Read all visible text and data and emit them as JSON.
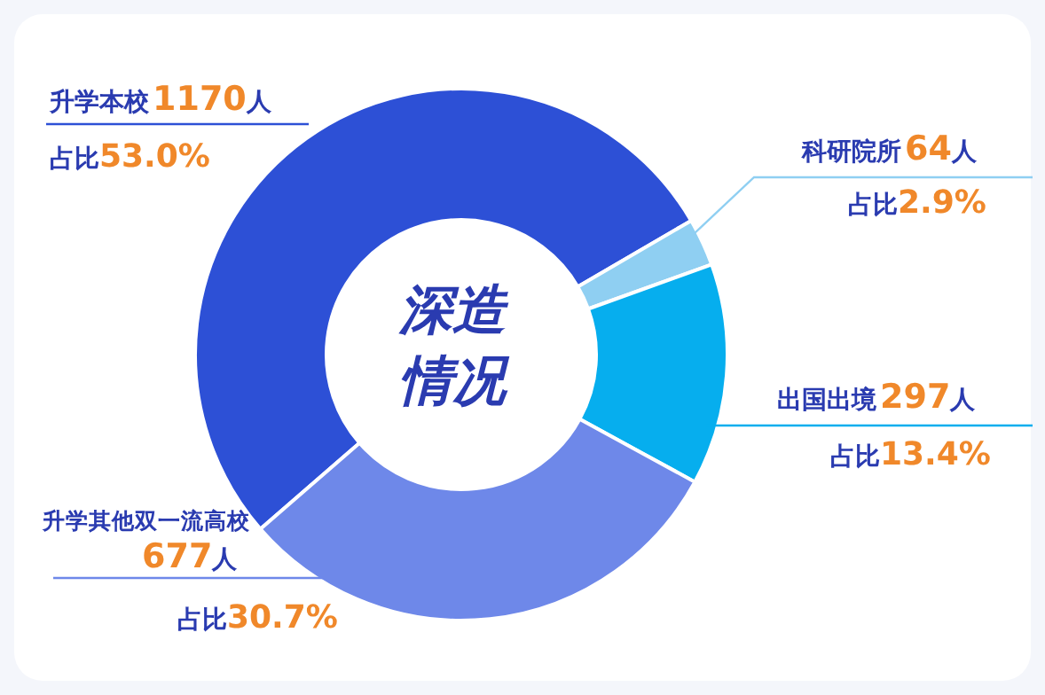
{
  "chart_data": {
    "type": "donut",
    "title": "深造情况",
    "categories": [
      "升学本校",
      "科研院所",
      "出国出境",
      "升学其他双一流高校"
    ],
    "values": [
      1170,
      64,
      297,
      677
    ],
    "value_labels": [
      "1170人",
      "64人",
      "297人",
      "677人"
    ],
    "colors": [
      "#2d50d6",
      "#8fcff2",
      "#06aeee",
      "#6e88e9"
    ],
    "annotations": [
      "占比53.0%",
      "占比2.9%",
      "占比13.4%",
      "占比30.7%"
    ],
    "legend": false
  }
}
